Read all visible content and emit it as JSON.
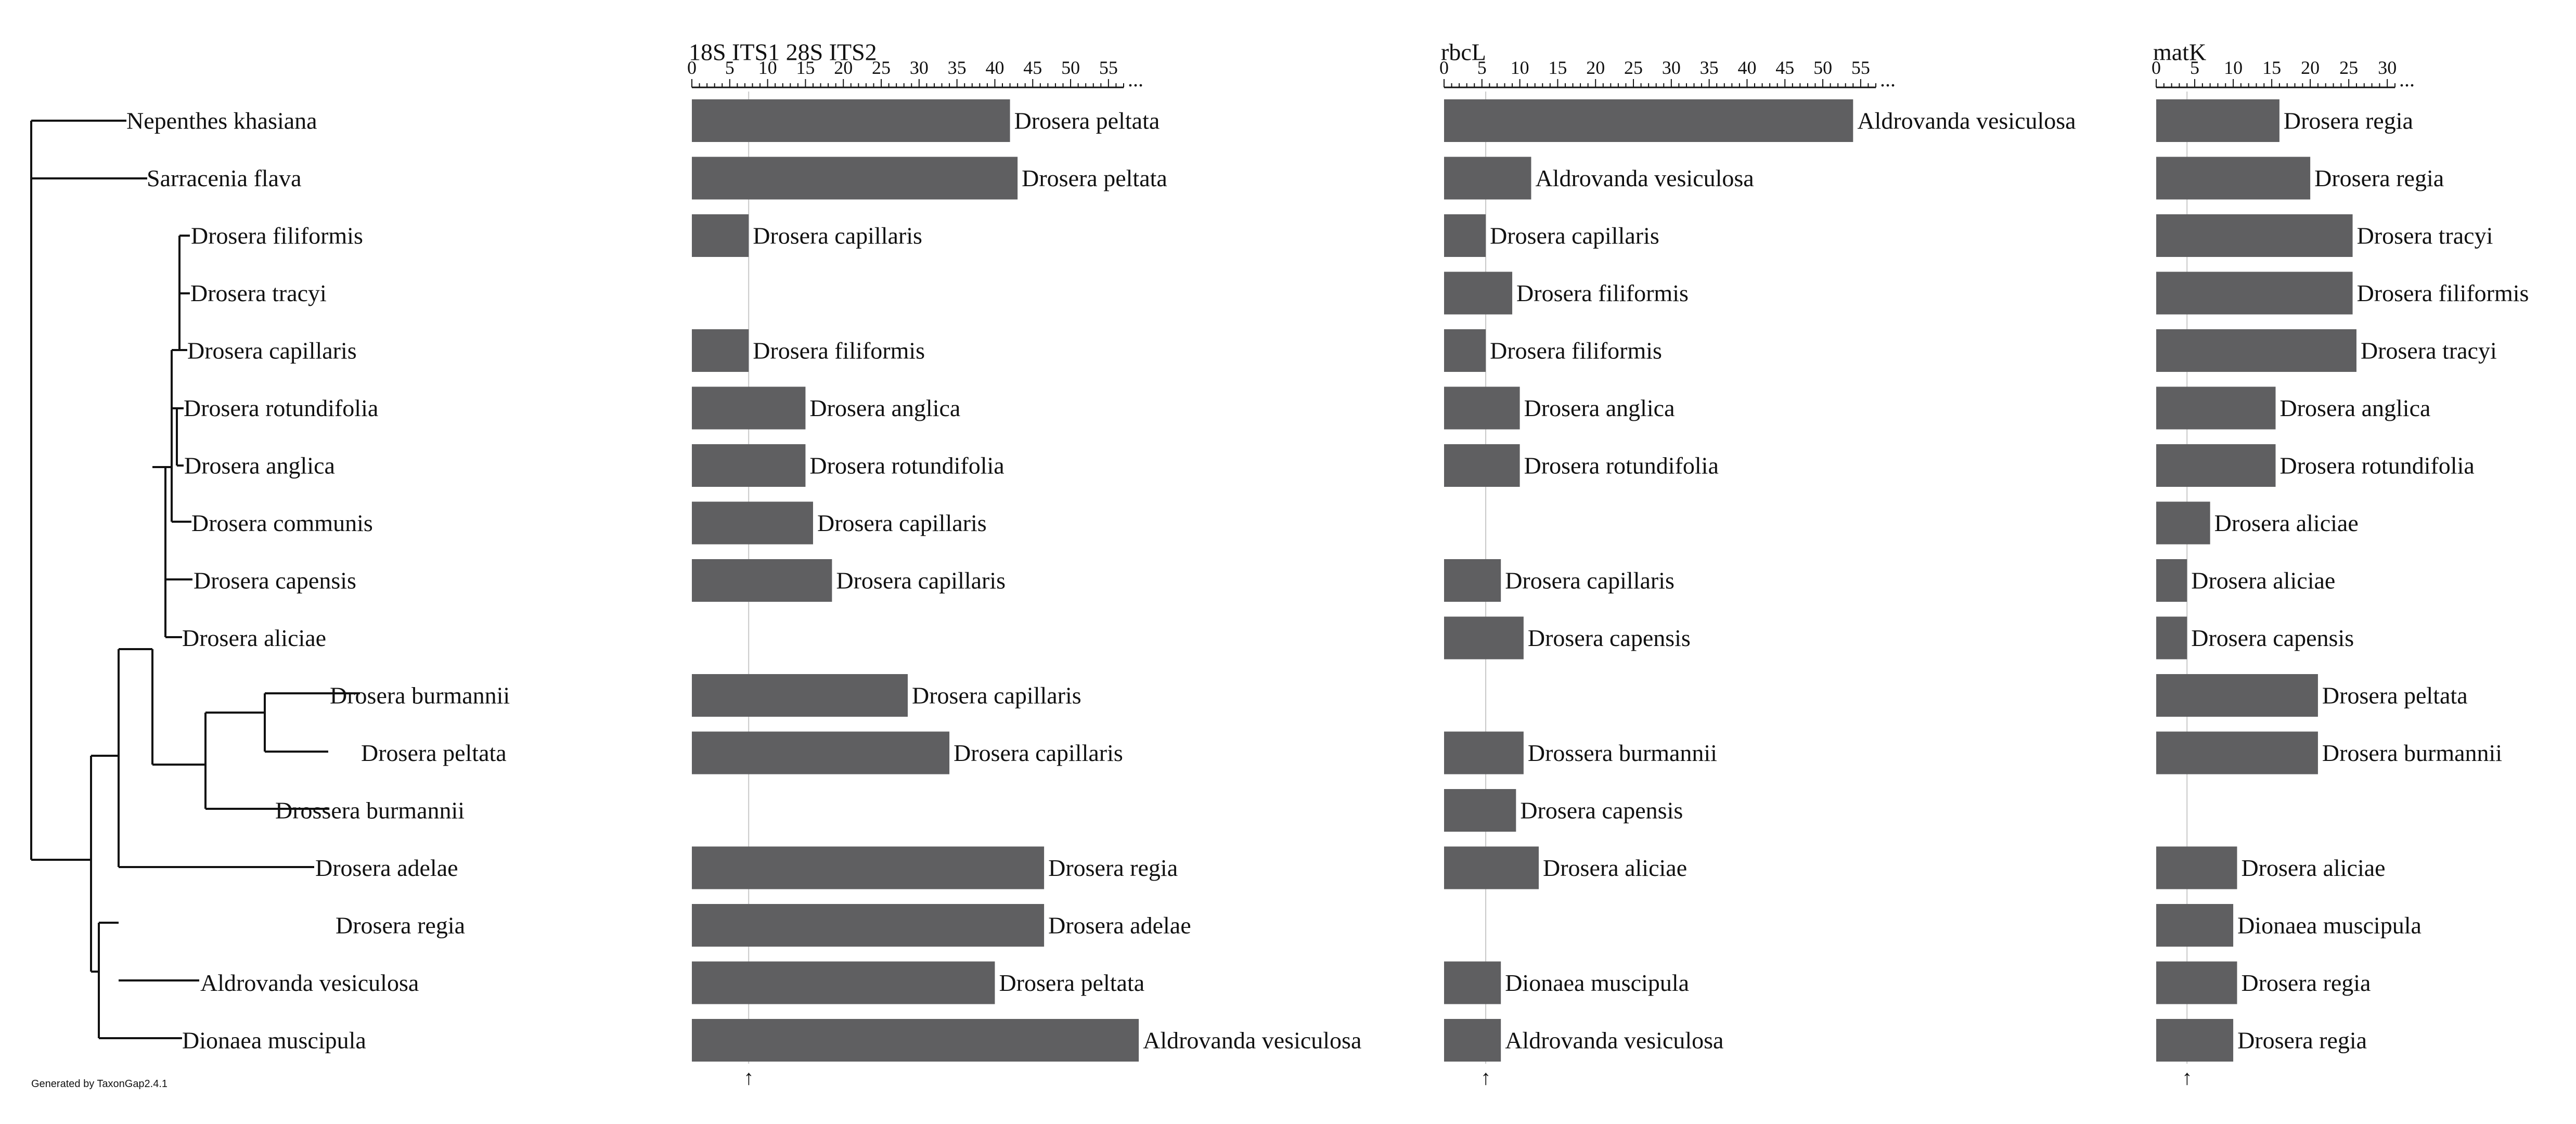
{
  "chart_data": {
    "type": "bar",
    "orientation": "horizontal",
    "species": [
      "Nepenthes khasiana",
      "Sarracenia flava",
      "Drosera filiformis",
      "Drosera tracyi",
      "Drosera capillaris",
      "Drosera rotundifolia",
      "Drosera anglica",
      "Drosera communis",
      "Drosera capensis",
      "Drosera aliciae",
      "Drosera burmannii",
      "Drosera peltata",
      "Drossera burmannii",
      "Drosera adelae",
      "Drosera regia",
      "Aldrovanda vesiculosa",
      "Dionaea muscipula"
    ],
    "markers": [
      {
        "name": "18S ITS1 28S ITS2",
        "ticks": [
          0,
          5,
          10,
          15,
          20,
          25,
          30,
          35,
          40,
          45,
          50,
          55
        ],
        "axis_max": 57,
        "more": "...",
        "threshold": 7.5,
        "threshold_marker": "↑",
        "bars": [
          {
            "value": 42,
            "label": "Drosera peltata"
          },
          {
            "value": 43,
            "label": "Drosera peltata"
          },
          {
            "value": 7.5,
            "label": "Drosera capillaris"
          },
          null,
          {
            "value": 7.5,
            "label": "Drosera filiformis"
          },
          {
            "value": 15,
            "label": "Drosera anglica"
          },
          {
            "value": 15,
            "label": "Drosera rotundifolia"
          },
          {
            "value": 16,
            "label": "Drosera capillaris"
          },
          {
            "value": 18.5,
            "label": "Drosera capillaris"
          },
          null,
          {
            "value": 28.5,
            "label": "Drosera capillaris"
          },
          {
            "value": 34,
            "label": "Drosera capillaris"
          },
          null,
          {
            "value": 46.5,
            "label": "Drosera regia"
          },
          {
            "value": 46.5,
            "label": "Drosera adelae"
          },
          {
            "value": 40,
            "label": "Drosera peltata"
          },
          {
            "value": 59,
            "label": "Aldrovanda vesiculosa"
          }
        ]
      },
      {
        "name": "rbcL",
        "ticks": [
          0,
          5,
          10,
          15,
          20,
          25,
          30,
          35,
          40,
          45,
          50,
          55
        ],
        "axis_max": 57,
        "more": "...",
        "threshold": 5.5,
        "threshold_marker": "↑",
        "bars": [
          {
            "value": 54,
            "label": "Aldrovanda vesiculosa"
          },
          {
            "value": 11.5,
            "label": "Aldrovanda vesiculosa"
          },
          {
            "value": 5.5,
            "label": "Drosera capillaris"
          },
          {
            "value": 9,
            "label": "Drosera filiformis"
          },
          {
            "value": 5.5,
            "label": "Drosera filiformis"
          },
          {
            "value": 10,
            "label": "Drosera anglica"
          },
          {
            "value": 10,
            "label": "Drosera rotundifolia"
          },
          null,
          {
            "value": 7.5,
            "label": "Drosera capillaris"
          },
          {
            "value": 10.5,
            "label": "Drosera capensis"
          },
          null,
          {
            "value": 10.5,
            "label": "Drossera burmannii"
          },
          {
            "value": 9.5,
            "label": "Drosera capensis"
          },
          {
            "value": 12.5,
            "label": "Drosera aliciae"
          },
          null,
          {
            "value": 7.5,
            "label": "Dionaea muscipula"
          },
          {
            "value": 7.5,
            "label": "Aldrovanda vesiculosa"
          }
        ]
      },
      {
        "name": "matK",
        "ticks": [
          0,
          5,
          10,
          15,
          20,
          25,
          30
        ],
        "axis_max": 31,
        "more": "...",
        "threshold": 4,
        "threshold_marker": "↑",
        "bars": [
          {
            "value": 16,
            "label": "Drosera regia"
          },
          {
            "value": 20,
            "label": "Drosera regia"
          },
          {
            "value": 25.5,
            "label": "Drosera tracyi"
          },
          {
            "value": 25.5,
            "label": "Drosera filiformis"
          },
          {
            "value": 26,
            "label": "Drosera tracyi"
          },
          {
            "value": 15.5,
            "label": "Drosera anglica"
          },
          {
            "value": 15.5,
            "label": "Drosera rotundifolia"
          },
          {
            "value": 7,
            "label": "Drosera aliciae"
          },
          {
            "value": 4,
            "label": "Drosera aliciae"
          },
          {
            "value": 4,
            "label": "Drosera capensis"
          },
          {
            "value": 21,
            "label": "Drosera peltata"
          },
          {
            "value": 21,
            "label": "Drosera burmannii"
          },
          null,
          {
            "value": 10.5,
            "label": "Drosera aliciae"
          },
          {
            "value": 10,
            "label": "Dionaea muscipula"
          },
          {
            "value": 10.5,
            "label": "Drosera regia"
          },
          {
            "value": 10,
            "label": "Drosera regia"
          }
        ]
      }
    ],
    "footer": "Generated by TaxonGap2.4.1"
  }
}
